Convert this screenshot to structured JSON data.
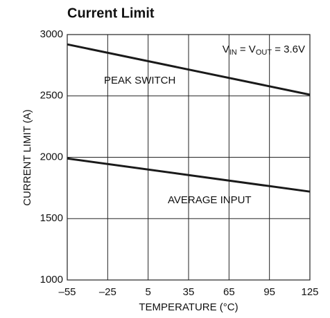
{
  "chart_data": {
    "type": "line",
    "title": "Current Limit",
    "xlabel": "TEMPERATURE (°C)",
    "ylabel": "CURRENT LIMIT (A)",
    "condition": [
      "V",
      "IN",
      " = V",
      "OUT",
      " = 3.6V"
    ],
    "x": [
      -55,
      125
    ],
    "series": [
      {
        "name": "PEAK SWITCH",
        "color": "#1a1a1a",
        "values": [
          2920,
          2510
        ]
      },
      {
        "name": "AVERAGE INPUT",
        "color": "#1a1a1a",
        "values": [
          1990,
          1720
        ]
      }
    ],
    "xlim": [
      -55,
      125
    ],
    "xticks": [
      {
        "value": -55,
        "label": "–55"
      },
      {
        "value": -25,
        "label": "–25"
      },
      5,
      35,
      65,
      95,
      125
    ],
    "ylim": [
      1000,
      3000
    ],
    "yticks": [
      1000,
      1500,
      2000,
      2500,
      3000
    ],
    "grid": true
  }
}
